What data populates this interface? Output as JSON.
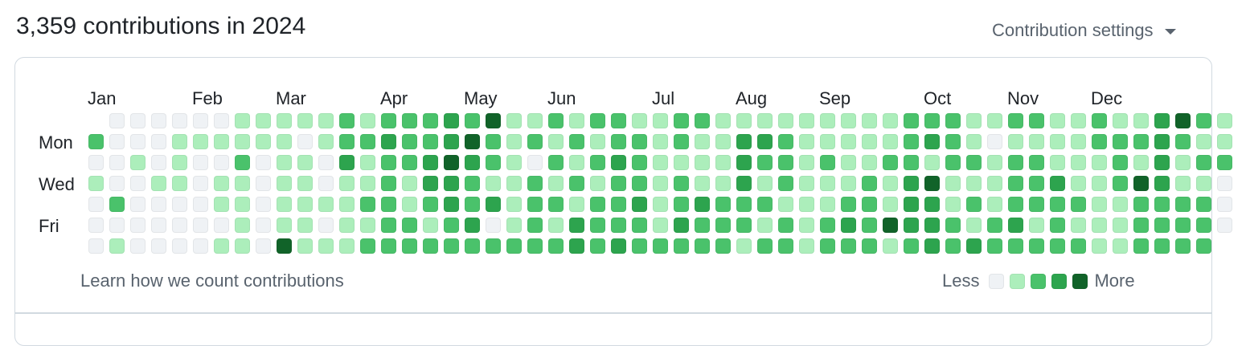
{
  "header": {
    "title": "3,359 contributions in 2024",
    "settings_label": "Contribution settings"
  },
  "months": [
    {
      "label": "Jan",
      "col": 0
    },
    {
      "label": "Feb",
      "col": 5
    },
    {
      "label": "Mar",
      "col": 9
    },
    {
      "label": "Apr",
      "col": 14
    },
    {
      "label": "May",
      "col": 18
    },
    {
      "label": "Jun",
      "col": 22
    },
    {
      "label": "Jul",
      "col": 27
    },
    {
      "label": "Aug",
      "col": 31
    },
    {
      "label": "Sep",
      "col": 35
    },
    {
      "label": "Oct",
      "col": 40
    },
    {
      "label": "Nov",
      "col": 44
    },
    {
      "label": "Dec",
      "col": 48
    }
  ],
  "day_labels": [
    {
      "label": "Mon",
      "row": 1
    },
    {
      "label": "Wed",
      "row": 3
    },
    {
      "label": "Fri",
      "row": 5
    }
  ],
  "colors": [
    "#eff2f5",
    "#aceebb",
    "#4ac26b",
    "#2da44e",
    "#116329"
  ],
  "first_day_row": 1,
  "levels": [
    "0201000",
    "0000201",
    "0010000",
    "0001000",
    "0111000",
    "0100000",
    "0101101",
    "1121111",
    "1100000",
    "1111114",
    "1011111",
    "1100101",
    "2231111",
    "1211212",
    "2322222",
    "2221122",
    "2233212",
    "3343322",
    "2432232",
    "4221302",
    "1111112",
    "1202222",
    "2121212",
    "1212133",
    "2121222",
    "2232223",
    "1222322",
    "1111112",
    "2212232",
    "2111322",
    "1111222",
    "1333221",
    "1321212",
    "1222122",
    "1111111",
    "1121122",
    "1111232",
    "1112222",
    "1121141",
    "2223332",
    "2314333",
    "2221122",
    "1121213",
    "1011122",
    "2122232",
    "2122212",
    "1113222",
    "1111212",
    "2211111",
    "1222111",
    "1214222",
    "3333222",
    "4211222",
    "2121222",
    "1120000"
  ],
  "footer": {
    "learn_label": "Learn how we count contributions",
    "legend_less": "Less",
    "legend_more": "More"
  }
}
